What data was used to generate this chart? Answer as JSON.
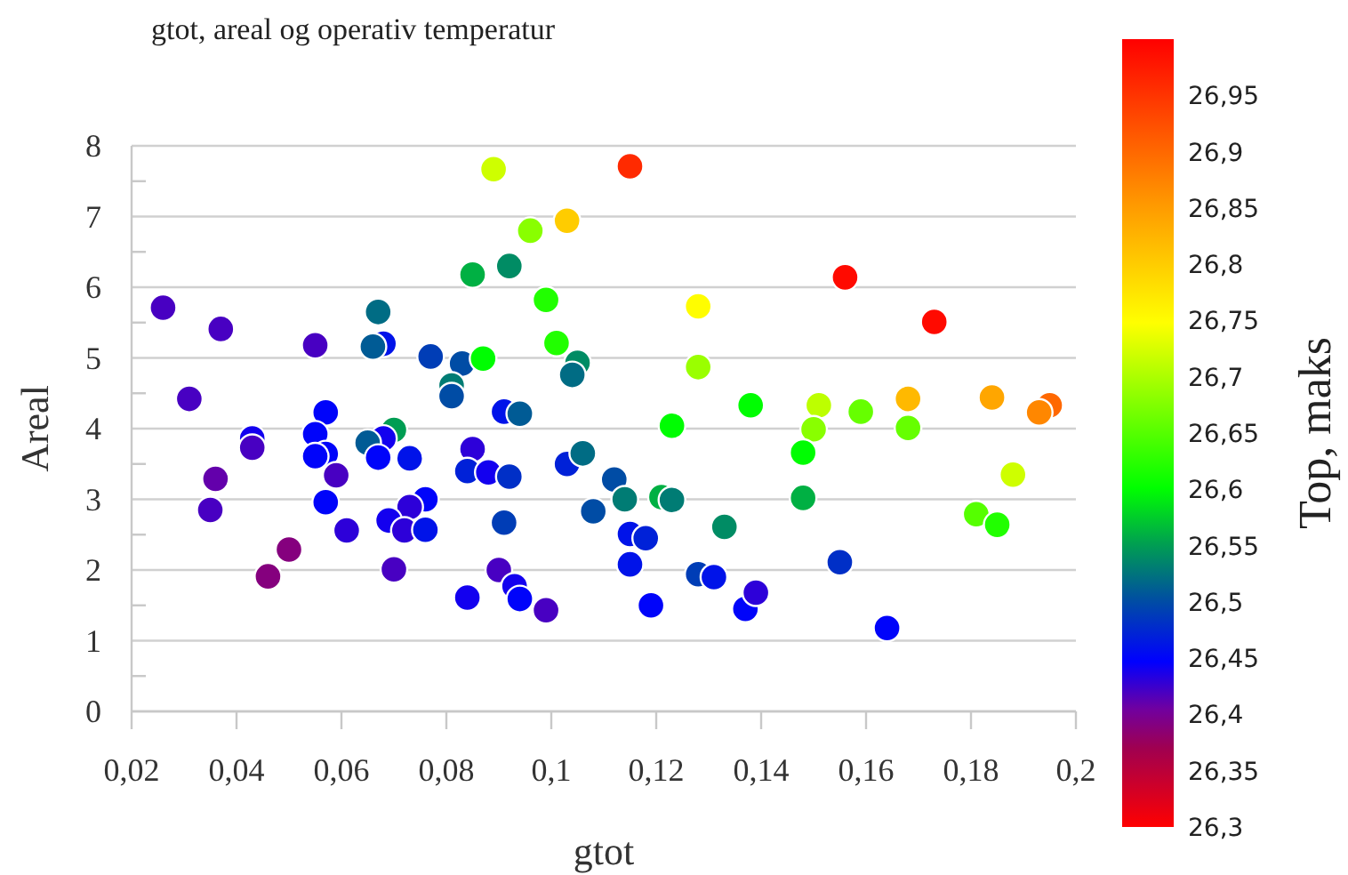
{
  "chart_data": {
    "type": "scatter",
    "title": "gtot, areal og operativ temperatur",
    "xlabel": "gtot",
    "ylabel": "Areal",
    "clabel": "Top, maks",
    "marker": "circle",
    "grid": "y",
    "xlim": [
      0.02,
      0.2
    ],
    "xticks": [
      {
        "value": 0.02,
        "label": "0,02"
      },
      {
        "value": 0.04,
        "label": "0,04"
      },
      {
        "value": 0.06,
        "label": "0,06"
      },
      {
        "value": 0.08,
        "label": "0,08"
      },
      {
        "value": 0.1,
        "label": "0,1"
      },
      {
        "value": 0.12,
        "label": "0,12"
      },
      {
        "value": 0.14,
        "label": "0,14"
      },
      {
        "value": 0.16,
        "label": "0,16"
      },
      {
        "value": 0.18,
        "label": "0,18"
      },
      {
        "value": 0.2,
        "label": "0,2"
      }
    ],
    "ylim": [
      0,
      8
    ],
    "yticks": [
      0,
      1,
      2,
      3,
      4,
      5,
      6,
      7,
      8
    ],
    "clim": [
      26.3,
      27.0
    ],
    "cticks": [
      {
        "value": 26.3,
        "label": "26,3"
      },
      {
        "value": 26.35,
        "label": "26,35"
      },
      {
        "value": 26.4,
        "label": "26,4"
      },
      {
        "value": 26.45,
        "label": "26,45"
      },
      {
        "value": 26.5,
        "label": "26,5"
      },
      {
        "value": 26.55,
        "label": "26,55"
      },
      {
        "value": 26.6,
        "label": "26,6"
      },
      {
        "value": 26.65,
        "label": "26,65"
      },
      {
        "value": 26.7,
        "label": "26,7"
      },
      {
        "value": 26.75,
        "label": "26,75"
      },
      {
        "value": 26.8,
        "label": "26,8"
      },
      {
        "value": 26.85,
        "label": "26,85"
      },
      {
        "value": 26.9,
        "label": "26,9"
      },
      {
        "value": 26.95,
        "label": "26,95"
      }
    ],
    "series": [
      {
        "x": [
          0.026,
          0.037,
          0.031,
          0.043,
          0.043,
          0.036,
          0.035,
          0.05,
          0.046,
          0.055,
          0.057,
          0.055,
          0.057,
          0.055,
          0.059,
          0.057,
          0.061,
          0.067,
          0.068,
          0.066,
          0.077,
          0.083,
          0.087,
          0.081,
          0.081,
          0.07,
          0.068,
          0.065,
          0.067,
          0.073,
          0.076,
          0.073,
          0.069,
          0.072,
          0.076,
          0.07,
          0.084,
          0.09,
          0.093,
          0.094,
          0.099,
          0.085,
          0.084,
          0.088,
          0.092,
          0.091,
          0.089,
          0.103,
          0.096,
          0.085,
          0.092,
          0.099,
          0.101,
          0.105,
          0.104,
          0.091,
          0.094,
          0.103,
          0.106,
          0.108,
          0.115,
          0.156,
          0.173,
          0.128,
          0.128,
          0.138,
          0.123,
          0.151,
          0.15,
          0.159,
          0.168,
          0.168,
          0.184,
          0.195,
          0.193,
          0.188,
          0.181,
          0.185,
          0.148,
          0.148,
          0.112,
          0.114,
          0.121,
          0.123,
          0.133,
          0.115,
          0.118,
          0.115,
          0.119,
          0.128,
          0.131,
          0.137,
          0.139,
          0.155,
          0.164
        ],
        "values": [
          5.71,
          5.41,
          4.42,
          3.86,
          3.73,
          3.29,
          2.85,
          2.29,
          1.91,
          5.18,
          4.23,
          3.92,
          3.64,
          3.61,
          3.34,
          2.96,
          2.56,
          5.65,
          5.2,
          5.16,
          5.02,
          4.92,
          4.99,
          4.61,
          4.46,
          3.98,
          3.86,
          3.8,
          3.59,
          3.58,
          3.0,
          2.89,
          2.7,
          2.56,
          2.57,
          2.01,
          1.61,
          2.0,
          1.77,
          1.59,
          1.43,
          3.71,
          3.4,
          3.38,
          3.32,
          2.67,
          7.67,
          6.94,
          6.8,
          6.18,
          6.3,
          5.82,
          5.21,
          4.93,
          4.76,
          4.24,
          4.21,
          3.5,
          3.65,
          2.83,
          7.71,
          6.14,
          5.51,
          5.73,
          4.87,
          4.33,
          4.04,
          4.33,
          3.99,
          4.24,
          4.42,
          4.01,
          4.44,
          4.33,
          4.23,
          3.35,
          2.79,
          2.64,
          3.66,
          3.02,
          3.28,
          3.0,
          3.03,
          2.99,
          2.61,
          2.51,
          2.45,
          2.08,
          1.5,
          1.94,
          1.9,
          1.45,
          1.68,
          2.11,
          1.18
        ],
        "cvalues": [
          26.42,
          26.42,
          26.42,
          26.44,
          26.42,
          26.41,
          26.42,
          26.39,
          26.39,
          26.42,
          26.45,
          26.45,
          26.45,
          26.45,
          26.42,
          26.45,
          26.43,
          26.52,
          26.46,
          26.51,
          26.49,
          26.5,
          26.6,
          26.53,
          26.5,
          26.55,
          26.44,
          26.51,
          26.45,
          26.46,
          26.45,
          26.43,
          26.44,
          26.43,
          26.46,
          26.42,
          26.44,
          26.42,
          26.44,
          26.45,
          26.42,
          26.43,
          26.47,
          26.44,
          26.48,
          26.49,
          26.72,
          26.8,
          26.68,
          26.56,
          26.54,
          26.62,
          26.62,
          26.54,
          26.52,
          26.46,
          26.51,
          26.47,
          26.52,
          26.5,
          26.96,
          26.99,
          26.99,
          26.75,
          26.69,
          26.6,
          26.6,
          26.71,
          26.68,
          26.66,
          26.82,
          26.66,
          26.84,
          26.9,
          26.87,
          26.72,
          26.65,
          26.62,
          26.6,
          26.56,
          26.5,
          26.53,
          26.56,
          26.53,
          26.54,
          26.46,
          26.47,
          26.46,
          26.45,
          26.49,
          26.46,
          26.45,
          26.43,
          26.48,
          26.45
        ]
      }
    ]
  }
}
